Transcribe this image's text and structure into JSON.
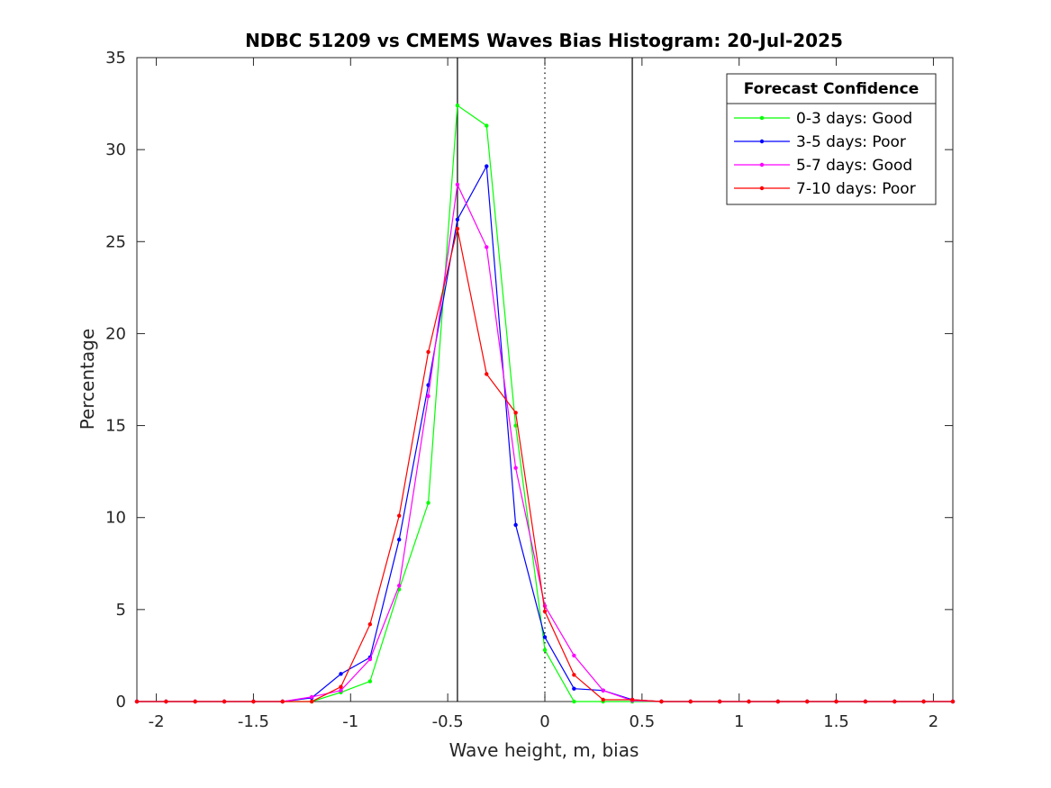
{
  "chart_data": {
    "type": "line",
    "title": "NDBC 51209 vs CMEMS Waves Bias Histogram: 20-Jul-2025",
    "xlabel": "Wave height, m, bias",
    "ylabel": "Percentage",
    "xlim": [
      -2.1,
      2.1
    ],
    "ylim": [
      0,
      35
    ],
    "xticks": [
      -2,
      -1.5,
      -1,
      -0.5,
      0,
      0.5,
      1,
      1.5,
      2
    ],
    "xtick_labels": [
      "-2",
      "-1.5",
      "-1",
      "-0.5",
      "0",
      "0.5",
      "1",
      "1.5",
      "2"
    ],
    "yticks": [
      0,
      5,
      10,
      15,
      20,
      25,
      30,
      35
    ],
    "ytick_labels": [
      "0",
      "5",
      "10",
      "15",
      "20",
      "25",
      "30",
      "35"
    ],
    "grid": false,
    "vertical_lines": [
      {
        "x": -0.45,
        "style": "solid",
        "color": "#000000"
      },
      {
        "x": 0,
        "style": "dotted",
        "color": "#000000"
      },
      {
        "x": 0.45,
        "style": "solid",
        "color": "#000000"
      }
    ],
    "legend": {
      "title": "Forecast Confidence",
      "placement": "top-right"
    },
    "x": [
      -2.1,
      -1.95,
      -1.8,
      -1.65,
      -1.5,
      -1.35,
      -1.2,
      -1.05,
      -0.9,
      -0.75,
      -0.6,
      -0.45,
      -0.3,
      -0.15,
      0,
      0.15,
      0.3,
      0.45,
      0.6,
      0.75,
      0.9,
      1.05,
      1.2,
      1.35,
      1.5,
      1.65,
      1.8,
      1.95,
      2.1
    ],
    "series": [
      {
        "name": "0-3 days: Good",
        "color": "#00ff00",
        "values": [
          0,
          0,
          0,
          0,
          0,
          0,
          0,
          0.5,
          1.1,
          6.1,
          10.8,
          32.4,
          31.3,
          15.0,
          2.8,
          0,
          0,
          0,
          0,
          0,
          0,
          0,
          0,
          0,
          0,
          0,
          0,
          0,
          0
        ]
      },
      {
        "name": "3-5 days: Poor",
        "color": "#0000ff",
        "values": [
          0,
          0,
          0,
          0,
          0,
          0,
          0.2,
          1.5,
          2.4,
          8.8,
          17.2,
          26.2,
          29.1,
          9.6,
          3.5,
          0.7,
          0.6,
          0.1,
          0,
          0,
          0,
          0,
          0,
          0,
          0,
          0,
          0,
          0,
          0
        ]
      },
      {
        "name": "5-7 days: Good",
        "color": "#ff00ff",
        "values": [
          0,
          0,
          0,
          0,
          0,
          0,
          0.25,
          0.6,
          2.3,
          6.3,
          16.6,
          28.1,
          24.7,
          12.7,
          5.2,
          2.5,
          0.6,
          0.05,
          0,
          0,
          0,
          0,
          0,
          0,
          0,
          0,
          0,
          0,
          0
        ]
      },
      {
        "name": "7-10 days: Poor",
        "color": "#ff0000",
        "values": [
          0,
          0,
          0,
          0,
          0,
          0,
          0,
          0.8,
          4.2,
          10.1,
          19.0,
          25.7,
          17.8,
          15.7,
          4.9,
          1.45,
          0.1,
          0.1,
          0,
          0,
          0,
          0,
          0,
          0,
          0,
          0,
          0,
          0,
          0
        ]
      }
    ]
  }
}
